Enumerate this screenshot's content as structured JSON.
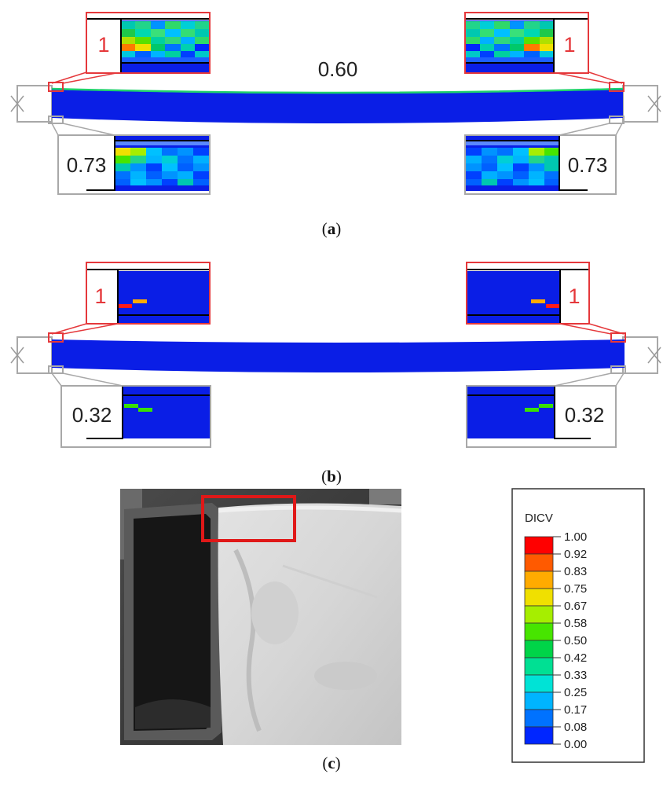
{
  "panel_a": {
    "caption_open": "(",
    "caption_letter": "a",
    "caption_close": ")",
    "mid_value": "0.60",
    "top_left_value": "1",
    "top_right_value": "1",
    "bottom_left_value": "0.73",
    "bottom_right_value": "0.73"
  },
  "panel_b": {
    "caption_open": "(",
    "caption_letter": "b",
    "caption_close": ")",
    "top_left_value": "1",
    "top_right_value": "1",
    "bottom_left_value": "0.32",
    "bottom_right_value": "0.32"
  },
  "panel_c": {
    "caption_open": "(",
    "caption_letter": "c",
    "caption_close": ")"
  },
  "legend": {
    "title": "DICV",
    "levels": [
      "1.00",
      "0.92",
      "0.83",
      "0.75",
      "0.67",
      "0.58",
      "0.50",
      "0.42",
      "0.33",
      "0.25",
      "0.17",
      "0.08",
      "0.00"
    ],
    "colors": [
      "#ff0000",
      "#ff5a00",
      "#ffab00",
      "#f0e000",
      "#a6ee00",
      "#47e500",
      "#00d448",
      "#00e093",
      "#00e3d6",
      "#00b4ff",
      "#0072ff",
      "#0026ff"
    ]
  },
  "colors": {
    "highlight": "#e5383b",
    "frame": "#a8a8a8",
    "beam": "#0a1ee6"
  }
}
